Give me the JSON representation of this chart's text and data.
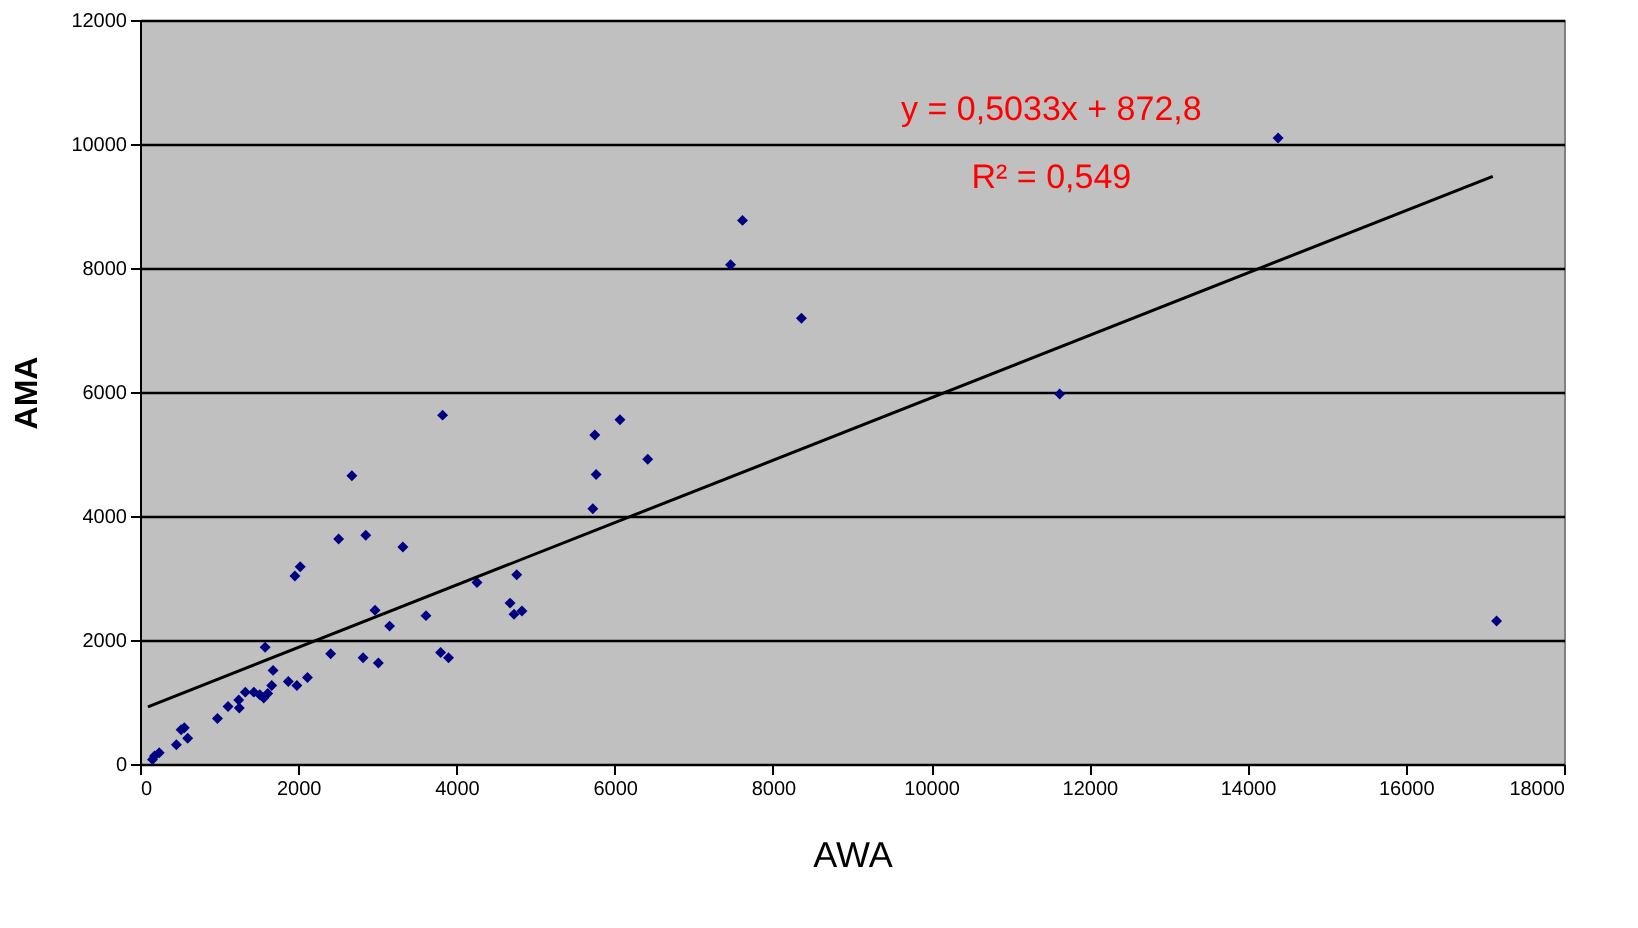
{
  "chart_data": {
    "type": "scatter",
    "xlabel": "AWA",
    "ylabel": "AMA",
    "xlim": [
      0,
      18000
    ],
    "ylim": [
      0,
      12000
    ],
    "xticks": [
      0,
      2000,
      4000,
      6000,
      8000,
      10000,
      12000,
      14000,
      16000,
      18000
    ],
    "yticks": [
      0,
      2000,
      4000,
      6000,
      8000,
      10000,
      12000
    ],
    "grid": "y",
    "marker": "diamond",
    "series": [
      {
        "color": "#000080",
        "x": [
          183,
          243,
          158,
          460,
          520,
          560,
          603,
          979,
          1113,
          1248,
          1255,
          1331,
          1439,
          1514,
          1564,
          1614,
          1665,
          1682,
          1582,
          1983,
          1875,
          2117,
          1958,
          2025,
          2410,
          2511,
          2678,
          2820,
          2854,
          2971,
          3013,
          3155,
          3323,
          3615,
          3825,
          3800,
          3900,
          4260,
          5749,
          6067,
          5766,
          6418,
          5724,
          4762,
          4678,
          4728,
          4828,
          7616,
          7465,
          8361,
          11625,
          14386,
          17148
        ],
        "values": [
          128,
          182,
          73,
          310,
          552,
          584,
          415,
          734,
          926,
          1031,
          904,
          1159,
          1159,
          1117,
          1063,
          1136,
          1267,
          1510,
          1883,
          1267,
          1331,
          1395,
          3032,
          3181,
          1777,
          3628,
          4649,
          1713,
          3691,
          2479,
          1628,
          2224,
          3500,
          2393,
          5627,
          1798,
          1713,
          2926,
          5308,
          5554,
          4670,
          4915,
          4117,
          3052,
          2595,
          2416,
          2467,
          8768,
          8053,
          7191,
          5969,
          10096,
          2308
        ]
      },
      {
        "type": "line",
        "color": "#000000",
        "line_style": "solid",
        "marker": "none",
        "x": [
          100,
          17100
        ],
        "values": [
          923,
          9479
        ]
      }
    ],
    "annotations": [
      "y = 0,5033x + 872,8",
      "R² = 0,549"
    ]
  }
}
